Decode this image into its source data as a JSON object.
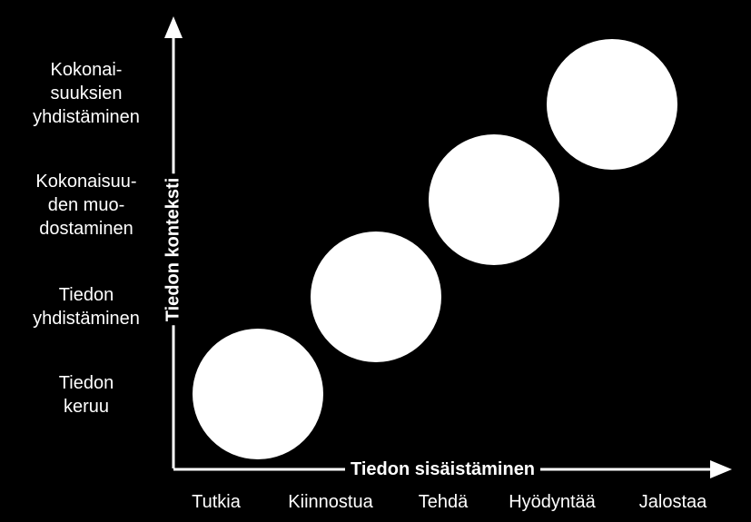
{
  "axes": {
    "x_title": "Tiedon sisäistäminen",
    "y_title": "Tiedon konteksti"
  },
  "y_levels": [
    "Kokonai-\nsuuksien\nyhdistäminen",
    "Kokonaisuu-\nden muo-\ndostaminen",
    "Tiedon\nyhdistäminen",
    "Tiedon\nkeruu"
  ],
  "x_levels": [
    "Tutkia",
    "Kiinnostua",
    "Tehdä",
    "Hyödyntää",
    "Jalostaa"
  ],
  "colors": {
    "background": "#000000",
    "foreground": "#ffffff"
  }
}
